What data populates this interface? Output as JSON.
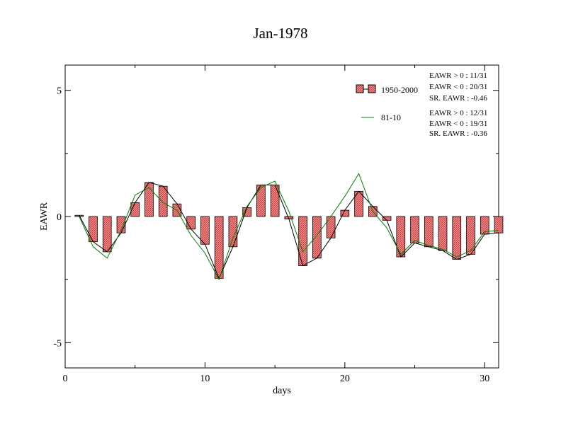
{
  "chart_data": {
    "type": "bar",
    "title": "Jan-1978",
    "xlabel": "days",
    "ylabel": "EAWR",
    "xlim": [
      0,
      31
    ],
    "ylim": [
      -6,
      6
    ],
    "xticks": [
      0,
      10,
      20,
      30
    ],
    "xtick_labels": [
      "0",
      "10",
      "20",
      "30"
    ],
    "yticks": [
      -5,
      0,
      5
    ],
    "ytick_labels": [
      "-5",
      "0",
      "5"
    ],
    "grid": false,
    "legend_position": "top-right",
    "x": [
      1,
      2,
      3,
      4,
      5,
      6,
      7,
      8,
      9,
      10,
      11,
      12,
      13,
      14,
      15,
      16,
      17,
      18,
      19,
      20,
      21,
      22,
      23,
      24,
      25,
      26,
      27,
      28,
      29,
      30,
      31
    ],
    "series": [
      {
        "name": "1950-2000",
        "kind": "bar",
        "color": "#ff8080",
        "values": [
          0.05,
          -1.0,
          -1.4,
          -0.65,
          0.55,
          1.35,
          1.2,
          0.5,
          -0.5,
          -1.1,
          -2.45,
          -1.2,
          0.35,
          1.25,
          1.25,
          -0.1,
          -1.95,
          -1.65,
          -0.85,
          0.25,
          1.0,
          0.4,
          -0.15,
          -1.6,
          -1.05,
          -1.2,
          -1.35,
          -1.7,
          -1.5,
          -0.7,
          -0.65
        ]
      },
      {
        "name": "",
        "kind": "line",
        "color": "#000000",
        "values": [
          0.05,
          -1.0,
          -1.4,
          -0.65,
          0.55,
          1.35,
          1.2,
          0.5,
          -0.5,
          -1.1,
          -2.45,
          -1.2,
          0.35,
          1.25,
          1.25,
          -0.1,
          -1.95,
          -1.65,
          -0.85,
          0.25,
          1.0,
          0.4,
          -0.15,
          -1.6,
          -1.05,
          -1.2,
          -1.35,
          -1.7,
          -1.5,
          -0.7,
          -0.65
        ]
      },
      {
        "name": "81-10",
        "kind": "line",
        "color": "#008000",
        "values": [
          0.0,
          -1.2,
          -1.65,
          -0.55,
          0.85,
          1.15,
          0.55,
          0.25,
          -0.75,
          -1.45,
          -2.5,
          -0.85,
          0.4,
          1.15,
          1.4,
          0.2,
          -1.4,
          -0.75,
          0.0,
          0.8,
          1.7,
          0.2,
          -0.45,
          -1.5,
          -0.95,
          -1.15,
          -1.3,
          -1.6,
          -1.35,
          -0.6,
          -0.55
        ]
      }
    ],
    "annotations": {
      "group1": [
        "EAWR > 0 : 11/31",
        "EAWR < 0 : 20/31",
        "SR. EAWR : -0.46"
      ],
      "group2": [
        "EAWR > 0 : 12/31",
        "EAWR < 0 : 19/31",
        "SR. EAWR : -0.36"
      ]
    }
  }
}
